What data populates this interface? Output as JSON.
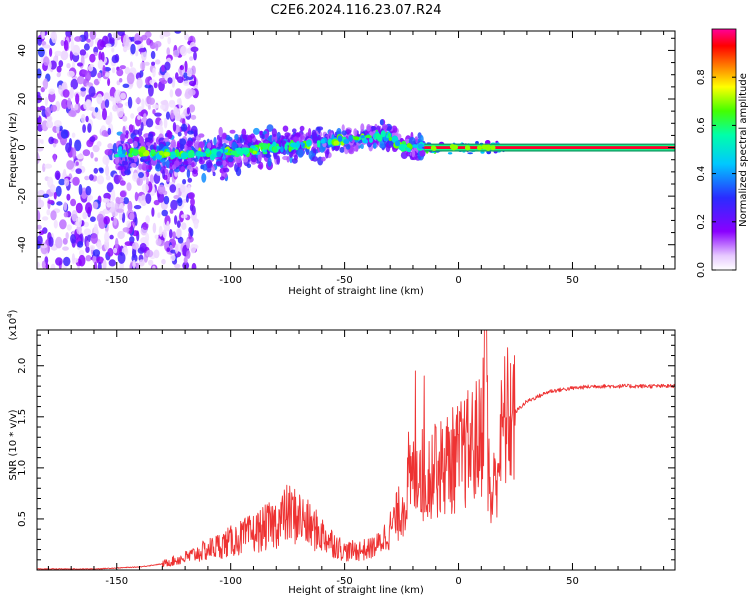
{
  "title": "C2E6.2024.116.23.07.R24",
  "colors": {
    "snr_line": "#ee3333",
    "axis": "#000000"
  },
  "chart_data": [
    {
      "type": "heatmap",
      "name": "spectrogram",
      "xlabel": "Height of straight line (km)",
      "ylabel": "Frequency (Hz)",
      "xlim": [
        -185,
        95
      ],
      "ylim": [
        -50,
        48
      ],
      "xticks": [
        -150,
        -100,
        -50,
        0,
        50
      ],
      "yticks": [
        -40,
        -20,
        0,
        20,
        40
      ],
      "colorbar": {
        "label": "Normalized spectral amplitude",
        "range": [
          0,
          1
        ],
        "ticks": [
          0.0,
          0.2,
          0.4,
          0.6,
          0.8
        ],
        "colormap": "hsv-like (white, violet, blue, cyan, green, yellow, red, magenta)"
      },
      "features": [
        {
          "segment": "noise",
          "x_range": [
            -185,
            -125
          ],
          "y_range": [
            -50,
            48
          ],
          "amplitude": 0.15
        },
        {
          "segment": "ridge",
          "points": [
            [
              -150,
              -2
            ],
            [
              -120,
              -3
            ],
            [
              -100,
              -2
            ],
            [
              -80,
              0
            ],
            [
              -60,
              2
            ],
            [
              -40,
              4
            ],
            [
              -30,
              5
            ],
            [
              -25,
              0
            ],
            [
              -15,
              0
            ]
          ],
          "amplitude": 0.5
        },
        {
          "segment": "stable",
          "x_range": [
            -15,
            95
          ],
          "frequency": 0,
          "amplitude": 0.95
        }
      ]
    },
    {
      "type": "line",
      "name": "snr",
      "xlabel": "Height of straight line (km)",
      "ylabel": "SNR (10 * v/v)",
      "scale_label": "(x10",
      "scale_exponent": "4",
      "scale_close": ")",
      "xlim": [
        -185,
        95
      ],
      "ylim": [
        0,
        2.35
      ],
      "xticks": [
        -150,
        -100,
        -50,
        0,
        50
      ],
      "yticks": [
        0.5,
        1.0,
        1.5,
        2.0
      ],
      "x": [
        -185,
        -160,
        -140,
        -130,
        -120,
        -110,
        -100,
        -90,
        -80,
        -75,
        -70,
        -65,
        -60,
        -50,
        -40,
        -35,
        -30,
        -25,
        -20,
        -17,
        -15,
        -12,
        -10,
        -5,
        0,
        5,
        10,
        12,
        14,
        20,
        30,
        40,
        50,
        60,
        70,
        80,
        95
      ],
      "y": [
        0.01,
        0.01,
        0.03,
        0.06,
        0.12,
        0.2,
        0.28,
        0.36,
        0.46,
        0.55,
        0.52,
        0.42,
        0.35,
        0.18,
        0.2,
        0.25,
        0.4,
        0.6,
        0.9,
        1.1,
        0.8,
        1.0,
        0.95,
        1.05,
        1.1,
        1.2,
        1.3,
        2.3,
        0.6,
        1.45,
        1.65,
        1.75,
        1.78,
        1.8,
        1.8,
        1.8,
        1.8
      ],
      "spike_peaks": [
        [
          -22,
          1.35
        ],
        [
          -19,
          1.95
        ],
        [
          -15,
          1.9
        ],
        [
          -10,
          1.4
        ],
        [
          12,
          2.35
        ],
        [
          13,
          0.58
        ]
      ]
    }
  ]
}
